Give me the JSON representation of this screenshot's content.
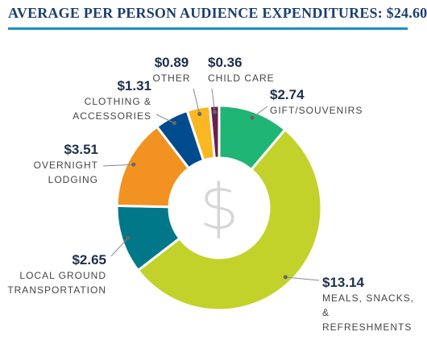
{
  "chart_data": {
    "type": "donut",
    "title": "AVERAGE PER PERSON AUDIENCE EXPENDITURES: $24.60",
    "center_symbol": "$",
    "categories": [
      "GIFT/SOUVENIRS",
      "MEALS, SNACKS,\n& REFRESHMENTS",
      "LOCAL GROUND\nTRANSPORTATION",
      "OVERNIGHT\nLODGING",
      "CLOTHING &\nACCESSORIES",
      "OTHER",
      "CHILD CARE"
    ],
    "values": [
      2.74,
      13.14,
      2.65,
      3.51,
      1.31,
      0.89,
      0.36
    ],
    "value_labels": [
      "$2.74",
      "$13.14",
      "$2.65",
      "$3.51",
      "$1.31",
      "$0.89",
      "$0.36"
    ],
    "colors": [
      "#1fb574",
      "#c3d22b",
      "#00788a",
      "#f29222",
      "#004b8d",
      "#f9b823",
      "#6b1f4d"
    ]
  }
}
